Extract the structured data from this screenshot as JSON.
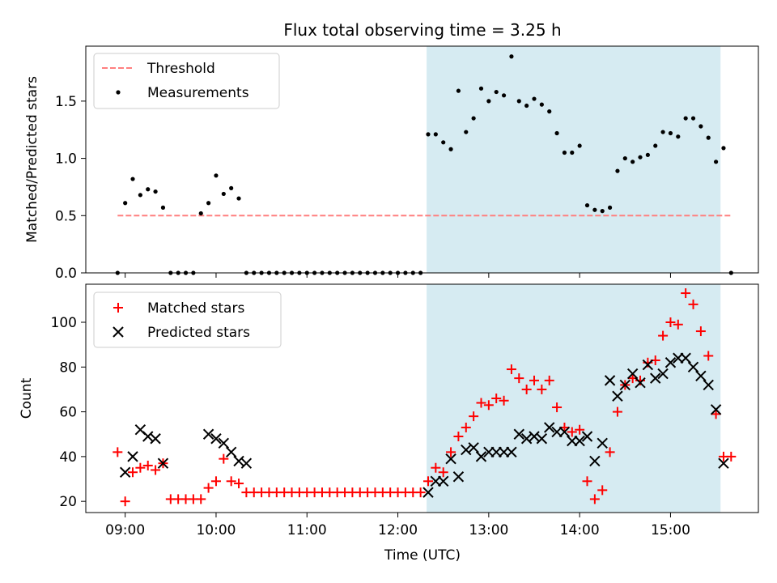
{
  "title": "Flux total observing time = 3.25 h",
  "colors": {
    "threshold": "#ff7f7f",
    "measurements": "#000000",
    "matched": "#ff0000",
    "predicted": "#000000",
    "span": "#add8e6"
  },
  "chart_data": [
    {
      "type": "scatter",
      "title": "Flux total observing time = 3.25 h",
      "ylabel": "Matched/Predicted stars",
      "xlabel": "",
      "xlim": [
        "08:34",
        "15:58"
      ],
      "ylim": [
        0,
        1.98
      ],
      "x_ticks": [
        "09:00",
        "10:00",
        "11:00",
        "12:00",
        "13:00",
        "14:00",
        "15:00"
      ],
      "y_ticks": [
        0.0,
        0.5,
        1.0,
        1.5
      ],
      "y_tick_labels": [
        "0.0",
        "0.5",
        "1.0",
        "1.5"
      ],
      "grid": false,
      "legend_position": "upper-left",
      "shaded_span": [
        "12:19",
        "15:33"
      ],
      "threshold": {
        "name": "Threshold",
        "y": 0.5,
        "x_start": "08:55",
        "x_end": "15:40",
        "style": "dashed"
      },
      "series": [
        {
          "name": "Measurements",
          "marker": "dot",
          "points": [
            [
              "08:55",
              0.0
            ],
            [
              "09:00",
              0.61
            ],
            [
              "09:05",
              0.82
            ],
            [
              "09:10",
              0.68
            ],
            [
              "09:15",
              0.73
            ],
            [
              "09:20",
              0.71
            ],
            [
              "09:25",
              0.57
            ],
            [
              "09:30",
              0.0
            ],
            [
              "09:35",
              0.0
            ],
            [
              "09:40",
              0.0
            ],
            [
              "09:45",
              0.0
            ],
            [
              "09:50",
              0.52
            ],
            [
              "09:55",
              0.61
            ],
            [
              "10:00",
              0.85
            ],
            [
              "10:05",
              0.69
            ],
            [
              "10:10",
              0.74
            ],
            [
              "10:15",
              0.65
            ],
            [
              "10:20",
              0.0
            ],
            [
              "10:25",
              0.0
            ],
            [
              "10:30",
              0.0
            ],
            [
              "10:35",
              0.0
            ],
            [
              "10:40",
              0.0
            ],
            [
              "10:45",
              0.0
            ],
            [
              "10:50",
              0.0
            ],
            [
              "10:55",
              0.0
            ],
            [
              "11:00",
              0.0
            ],
            [
              "11:05",
              0.0
            ],
            [
              "11:10",
              0.0
            ],
            [
              "11:15",
              0.0
            ],
            [
              "11:20",
              0.0
            ],
            [
              "11:25",
              0.0
            ],
            [
              "11:30",
              0.0
            ],
            [
              "11:35",
              0.0
            ],
            [
              "11:40",
              0.0
            ],
            [
              "11:45",
              0.0
            ],
            [
              "11:50",
              0.0
            ],
            [
              "11:55",
              0.0
            ],
            [
              "12:00",
              0.0
            ],
            [
              "12:05",
              0.0
            ],
            [
              "12:10",
              0.0
            ],
            [
              "12:15",
              0.0
            ],
            [
              "12:20",
              1.21
            ],
            [
              "12:25",
              1.21
            ],
            [
              "12:30",
              1.14
            ],
            [
              "12:35",
              1.08
            ],
            [
              "12:40",
              1.59
            ],
            [
              "12:45",
              1.23
            ],
            [
              "12:50",
              1.35
            ],
            [
              "12:55",
              1.61
            ],
            [
              "13:00",
              1.5
            ],
            [
              "13:05",
              1.58
            ],
            [
              "13:10",
              1.55
            ],
            [
              "13:15",
              1.89
            ],
            [
              "13:20",
              1.5
            ],
            [
              "13:25",
              1.46
            ],
            [
              "13:30",
              1.52
            ],
            [
              "13:35",
              1.47
            ],
            [
              "13:40",
              1.41
            ],
            [
              "13:45",
              1.22
            ],
            [
              "13:50",
              1.05
            ],
            [
              "13:55",
              1.05
            ],
            [
              "14:00",
              1.11
            ],
            [
              "14:05",
              0.59
            ],
            [
              "14:10",
              0.55
            ],
            [
              "14:15",
              0.54
            ],
            [
              "14:20",
              0.57
            ],
            [
              "14:25",
              0.89
            ],
            [
              "14:30",
              1.0
            ],
            [
              "14:35",
              0.97
            ],
            [
              "14:40",
              1.01
            ],
            [
              "14:45",
              1.03
            ],
            [
              "14:50",
              1.11
            ],
            [
              "14:55",
              1.23
            ],
            [
              "15:00",
              1.22
            ],
            [
              "15:05",
              1.19
            ],
            [
              "15:10",
              1.35
            ],
            [
              "15:15",
              1.35
            ],
            [
              "15:20",
              1.28
            ],
            [
              "15:25",
              1.18
            ],
            [
              "15:30",
              0.97
            ],
            [
              "15:35",
              1.09
            ],
            [
              "15:40",
              0.0
            ]
          ]
        }
      ]
    },
    {
      "type": "scatter",
      "xlabel": "Time (UTC)",
      "ylabel": "Count",
      "xlim": [
        "08:34",
        "15:58"
      ],
      "ylim": [
        15,
        117
      ],
      "x_ticks": [
        "09:00",
        "10:00",
        "11:00",
        "12:00",
        "13:00",
        "14:00",
        "15:00"
      ],
      "y_ticks": [
        20,
        40,
        60,
        80,
        100
      ],
      "grid": false,
      "legend_position": "upper-left",
      "shaded_span": [
        "12:19",
        "15:33"
      ],
      "series": [
        {
          "name": "Matched stars",
          "marker": "plus",
          "points": [
            [
              "08:55",
              42
            ],
            [
              "09:00",
              20
            ],
            [
              "09:05",
              33
            ],
            [
              "09:10",
              35
            ],
            [
              "09:15",
              36
            ],
            [
              "09:20",
              34
            ],
            [
              "09:25",
              37
            ],
            [
              "09:30",
              21
            ],
            [
              "09:35",
              21
            ],
            [
              "09:40",
              21
            ],
            [
              "09:45",
              21
            ],
            [
              "09:50",
              21
            ],
            [
              "09:55",
              26
            ],
            [
              "10:00",
              29
            ],
            [
              "10:05",
              39
            ],
            [
              "10:10",
              29
            ],
            [
              "10:15",
              28
            ],
            [
              "10:20",
              24
            ],
            [
              "10:25",
              24
            ],
            [
              "10:30",
              24
            ],
            [
              "10:35",
              24
            ],
            [
              "10:40",
              24
            ],
            [
              "10:45",
              24
            ],
            [
              "10:50",
              24
            ],
            [
              "10:55",
              24
            ],
            [
              "11:00",
              24
            ],
            [
              "11:05",
              24
            ],
            [
              "11:10",
              24
            ],
            [
              "11:15",
              24
            ],
            [
              "11:20",
              24
            ],
            [
              "11:25",
              24
            ],
            [
              "11:30",
              24
            ],
            [
              "11:35",
              24
            ],
            [
              "11:40",
              24
            ],
            [
              "11:45",
              24
            ],
            [
              "11:50",
              24
            ],
            [
              "11:55",
              24
            ],
            [
              "12:00",
              24
            ],
            [
              "12:05",
              24
            ],
            [
              "12:10",
              24
            ],
            [
              "12:15",
              24
            ],
            [
              "12:20",
              29
            ],
            [
              "12:25",
              35
            ],
            [
              "12:30",
              33
            ],
            [
              "12:35",
              42
            ],
            [
              "12:40",
              49
            ],
            [
              "12:45",
              53
            ],
            [
              "12:50",
              58
            ],
            [
              "12:55",
              64
            ],
            [
              "13:00",
              63
            ],
            [
              "13:05",
              66
            ],
            [
              "13:10",
              65
            ],
            [
              "13:15",
              79
            ],
            [
              "13:20",
              75
            ],
            [
              "13:25",
              70
            ],
            [
              "13:30",
              74
            ],
            [
              "13:35",
              70
            ],
            [
              "13:40",
              74
            ],
            [
              "13:45",
              62
            ],
            [
              "13:50",
              53
            ],
            [
              "13:55",
              51
            ],
            [
              "14:00",
              52
            ],
            [
              "14:05",
              29
            ],
            [
              "14:10",
              21
            ],
            [
              "14:15",
              25
            ],
            [
              "14:20",
              42
            ],
            [
              "14:25",
              60
            ],
            [
              "14:30",
              72
            ],
            [
              "14:35",
              75
            ],
            [
              "14:40",
              74
            ],
            [
              "14:45",
              82
            ],
            [
              "14:50",
              83
            ],
            [
              "14:55",
              94
            ],
            [
              "15:00",
              100
            ],
            [
              "15:05",
              99
            ],
            [
              "15:10",
              113
            ],
            [
              "15:15",
              108
            ],
            [
              "15:20",
              96
            ],
            [
              "15:25",
              85
            ],
            [
              "15:30",
              59
            ],
            [
              "15:35",
              40
            ],
            [
              "15:40",
              40
            ]
          ]
        },
        {
          "name": "Predicted stars",
          "marker": "x",
          "points": [
            [
              "09:00",
              33
            ],
            [
              "09:05",
              40
            ],
            [
              "09:10",
              52
            ],
            [
              "09:15",
              49
            ],
            [
              "09:20",
              48
            ],
            [
              "09:25",
              37
            ],
            [
              "09:55",
              50
            ],
            [
              "10:00",
              48
            ],
            [
              "10:05",
              46
            ],
            [
              "10:10",
              42
            ],
            [
              "10:15",
              38
            ],
            [
              "10:20",
              37
            ],
            [
              "12:20",
              24
            ],
            [
              "12:25",
              29
            ],
            [
              "12:30",
              29
            ],
            [
              "12:35",
              39
            ],
            [
              "12:40",
              31
            ],
            [
              "12:45",
              43
            ],
            [
              "12:50",
              44
            ],
            [
              "12:55",
              40
            ],
            [
              "13:00",
              42
            ],
            [
              "13:05",
              42
            ],
            [
              "13:10",
              42
            ],
            [
              "13:15",
              42
            ],
            [
              "13:20",
              50
            ],
            [
              "13:25",
              48
            ],
            [
              "13:30",
              49
            ],
            [
              "13:35",
              48
            ],
            [
              "13:40",
              53
            ],
            [
              "13:45",
              51
            ],
            [
              "13:50",
              51
            ],
            [
              "13:55",
              47
            ],
            [
              "14:00",
              47
            ],
            [
              "14:05",
              49
            ],
            [
              "14:10",
              38
            ],
            [
              "14:15",
              46
            ],
            [
              "14:20",
              74
            ],
            [
              "14:25",
              67
            ],
            [
              "14:30",
              72
            ],
            [
              "14:35",
              77
            ],
            [
              "14:40",
              73
            ],
            [
              "14:45",
              81
            ],
            [
              "14:50",
              75
            ],
            [
              "14:55",
              77
            ],
            [
              "15:00",
              82
            ],
            [
              "15:05",
              84
            ],
            [
              "15:10",
              84
            ],
            [
              "15:15",
              80
            ],
            [
              "15:20",
              76
            ],
            [
              "15:25",
              72
            ],
            [
              "15:30",
              61
            ],
            [
              "15:35",
              37
            ]
          ]
        }
      ]
    }
  ]
}
